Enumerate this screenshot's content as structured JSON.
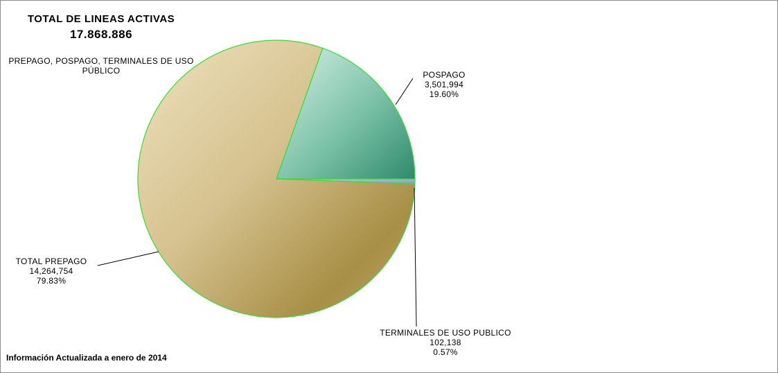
{
  "header": {
    "title": "TOTAL DE LINEAS ACTIVAS",
    "total": "17.868.886"
  },
  "caption": "PREPAGO, POSPAGO, TERMINALES DE USO PÚBLICO",
  "footer": "Información Actualizada a enero de 2014",
  "chart_data": {
    "type": "pie",
    "title": "TOTAL DE LINEAS ACTIVAS",
    "subtitle": "17.868.886",
    "slices": [
      {
        "name": "POSPAGO",
        "value": 3501994,
        "value_label": "3,501,994",
        "percent": 19.6,
        "percent_label": "19.60%",
        "color": "#5aaa8e"
      },
      {
        "name": "TERMINALES DE USO PUBLICO",
        "value": 102138,
        "value_label": "102,138",
        "percent": 0.57,
        "percent_label": "0.57%",
        "color": "#9da8d8"
      },
      {
        "name": "TOTAL PREPAGO",
        "value": 14264754,
        "value_label": "14,264,754",
        "percent": 79.83,
        "percent_label": "79.83%",
        "color": "#c8b07a"
      }
    ],
    "start_angle_deg": -70.5,
    "slice_border_color": "#33dd33",
    "legend": "none"
  }
}
